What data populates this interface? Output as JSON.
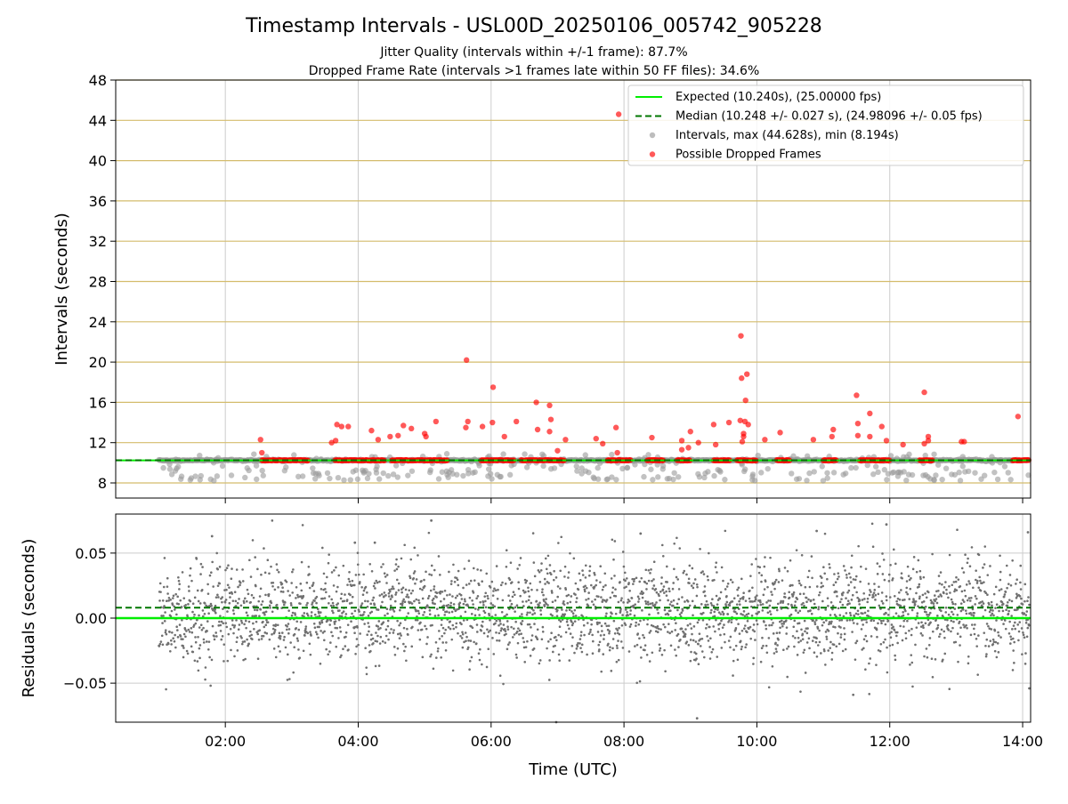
{
  "figure": {
    "title": "Timestamp Intervals - USL00D_20250106_005742_905228",
    "subtitle_1": "Jitter Quality (intervals within +/-1 frame): 87.7%",
    "subtitle_2": "Dropped Frame Rate (intervals >1 frames late within 50 FF files): 34.6%"
  },
  "colors": {
    "expected": "#00ee00",
    "median": "#007700",
    "intervals": "#999999",
    "dropped": "#ff0000",
    "hgrid": "#d4bc6c",
    "grid": "#cccccc",
    "residuals": "#707070"
  },
  "chart_data": [
    {
      "type": "scatter",
      "xlabel": "",
      "ylabel": "Intervals (seconds)",
      "xlim_hours": [
        0.35,
        14.12
      ],
      "ylim": [
        6.5,
        48
      ],
      "yticks": [
        8,
        12,
        16,
        20,
        24,
        28,
        32,
        36,
        40,
        44,
        48
      ],
      "ytick_labels": [
        "8",
        "12",
        "16",
        "20",
        "24",
        "28",
        "32",
        "36",
        "40",
        "44",
        "48"
      ],
      "grid": true,
      "legend_position": "top-right",
      "expected_value": 10.24,
      "median_value": 10.248,
      "legend": [
        {
          "label": "Expected (10.240s), (25.00000 fps)",
          "style": "solid-line",
          "color": "#00ee00"
        },
        {
          "label": "Median (10.248 +/- 0.027 s), (24.98096 +/- 0.05 fps)",
          "style": "dashed-line",
          "color": "#007700"
        },
        {
          "label": "Intervals, max (44.628s), min (8.194s)",
          "style": "marker",
          "color": "#999999"
        },
        {
          "label": "Possible Dropped Frames",
          "style": "marker",
          "color": "#ff0000"
        }
      ],
      "series": [
        {
          "name": "Possible Dropped Frames",
          "points": [
            [
              2.53,
              12.3
            ],
            [
              2.55,
              11.0
            ],
            [
              3.68,
              13.8
            ],
            [
              3.75,
              13.6
            ],
            [
              3.85,
              13.6
            ],
            [
              3.6,
              12.0
            ],
            [
              3.66,
              12.2
            ],
            [
              4.2,
              13.2
            ],
            [
              4.3,
              12.3
            ],
            [
              4.48,
              12.6
            ],
            [
              4.6,
              12.7
            ],
            [
              4.68,
              13.7
            ],
            [
              4.8,
              13.4
            ],
            [
              5.0,
              12.9
            ],
            [
              5.02,
              12.6
            ],
            [
              5.17,
              14.1
            ],
            [
              5.63,
              20.2
            ],
            [
              5.62,
              13.5
            ],
            [
              5.65,
              14.1
            ],
            [
              5.87,
              13.6
            ],
            [
              6.02,
              14.0
            ],
            [
              6.03,
              17.5
            ],
            [
              6.2,
              12.6
            ],
            [
              6.38,
              14.1
            ],
            [
              6.68,
              16.0
            ],
            [
              6.7,
              13.3
            ],
            [
              6.88,
              15.7
            ],
            [
              6.9,
              14.3
            ],
            [
              6.88,
              13.1
            ],
            [
              7.0,
              11.2
            ],
            [
              7.12,
              12.3
            ],
            [
              7.58,
              12.4
            ],
            [
              7.68,
              11.9
            ],
            [
              7.88,
              13.5
            ],
            [
              7.9,
              11.0
            ],
            [
              7.92,
              44.6
            ],
            [
              8.42,
              12.5
            ],
            [
              8.87,
              12.2
            ],
            [
              8.87,
              11.3
            ],
            [
              8.97,
              11.5
            ],
            [
              9.0,
              13.1
            ],
            [
              9.12,
              12.0
            ],
            [
              9.35,
              13.8
            ],
            [
              9.38,
              11.8
            ],
            [
              9.58,
              14.0
            ],
            [
              9.75,
              14.2
            ],
            [
              9.76,
              22.6
            ],
            [
              9.77,
              18.4
            ],
            [
              9.8,
              12.9
            ],
            [
              9.83,
              16.2
            ],
            [
              9.85,
              18.8
            ],
            [
              9.82,
              14.1
            ],
            [
              9.87,
              13.8
            ],
            [
              9.78,
              12.1
            ],
            [
              9.8,
              12.6
            ],
            [
              10.12,
              12.3
            ],
            [
              10.35,
              13.0
            ],
            [
              10.85,
              12.3
            ],
            [
              11.15,
              13.3
            ],
            [
              11.13,
              12.6
            ],
            [
              11.5,
              16.7
            ],
            [
              11.52,
              13.9
            ],
            [
              11.52,
              12.7
            ],
            [
              11.7,
              12.6
            ],
            [
              11.7,
              14.9
            ],
            [
              11.88,
              13.6
            ],
            [
              11.95,
              12.2
            ],
            [
              12.2,
              11.8
            ],
            [
              12.52,
              17.0
            ],
            [
              12.52,
              11.9
            ],
            [
              12.58,
              12.6
            ],
            [
              12.58,
              12.2
            ],
            [
              13.08,
              12.1
            ],
            [
              13.12,
              12.1
            ],
            [
              13.93,
              14.6
            ]
          ]
        }
      ]
    },
    {
      "type": "scatter",
      "xlabel": "Time (UTC)",
      "ylabel": "Residuals (seconds)",
      "xlim_hours": [
        0.35,
        14.12
      ],
      "ylim": [
        -0.08,
        0.08
      ],
      "yticks": [
        -0.05,
        0.0,
        0.05
      ],
      "ytick_labels": [
        "−0.05",
        "0.00",
        "0.05"
      ],
      "xticks_hours": [
        2,
        4,
        6,
        8,
        10,
        12,
        14
      ],
      "xtick_labels": [
        "02:00",
        "04:00",
        "06:00",
        "08:00",
        "10:00",
        "12:00",
        "14:00"
      ],
      "grid": true,
      "expected_value": 0.0,
      "median_value": 0.008,
      "series": [
        {
          "name": "residuals",
          "distribution": "approximately normal around 0.005 s, spread about 0.02 s, over 01:00 to 14:10",
          "notable_points": [
            [
              1.8,
              0.063
            ],
            [
              3.95,
              0.058
            ],
            [
              4.25,
              0.058
            ],
            [
              5.1,
              0.075
            ],
            [
              8.25,
              0.065
            ],
            [
              9.1,
              -0.077
            ],
            [
              10.9,
              0.067
            ],
            [
              11.45,
              -0.059
            ],
            [
              11.95,
              0.072
            ],
            [
              14.08,
              0.066
            ],
            [
              14.1,
              -0.054
            ],
            [
              6.98,
              -0.08
            ]
          ]
        }
      ]
    }
  ]
}
